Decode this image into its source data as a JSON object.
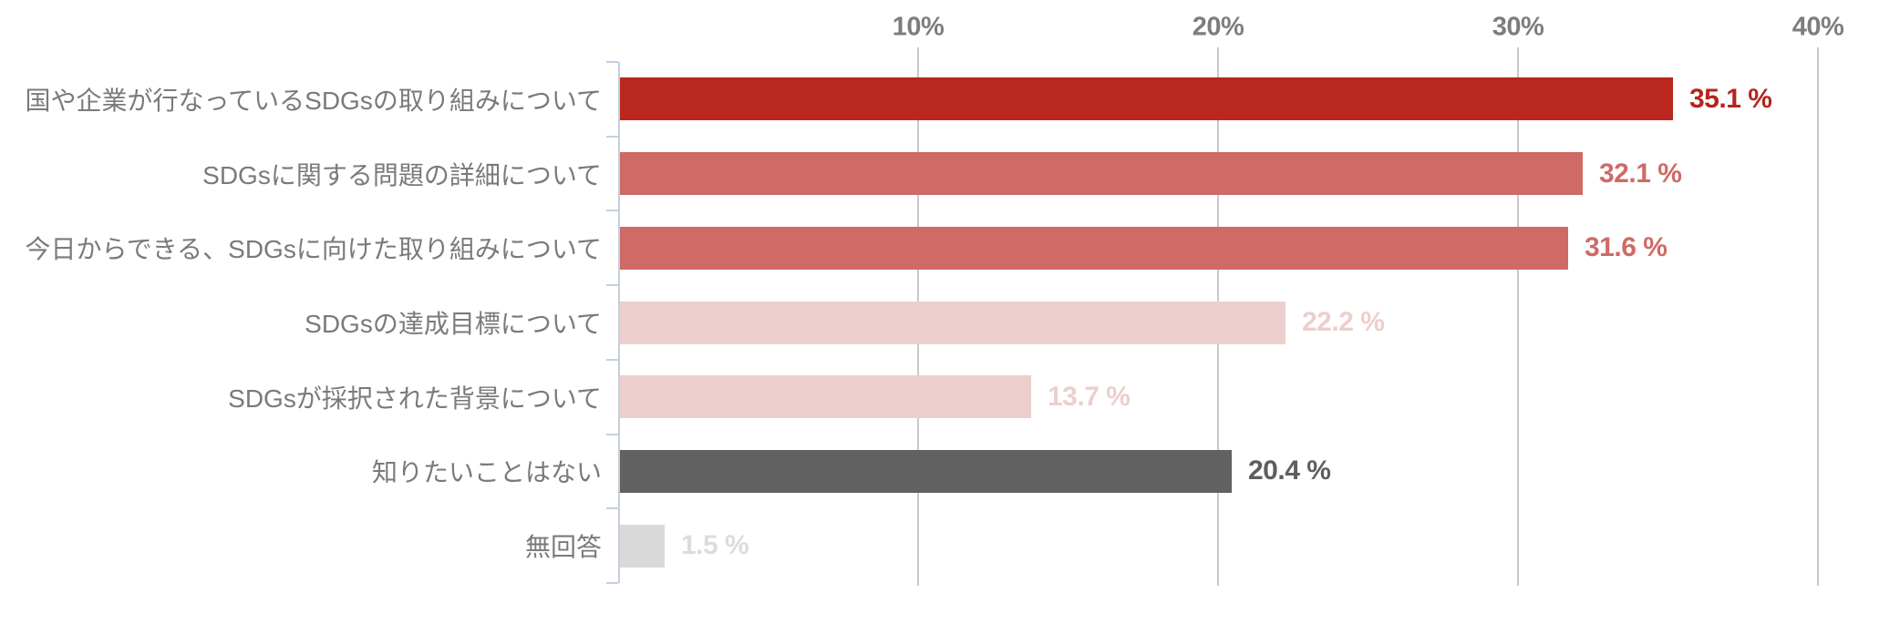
{
  "chart_data": {
    "type": "bar",
    "orientation": "horizontal",
    "title": "",
    "categories": [
      "国や企業が行なっているSDGsの取り組みについて",
      "SDGsに関する問題の詳細について",
      "今日からできる、SDGsに向けた取り組みについて",
      "SDGsの達成目標について",
      "SDGsが採択された背景について",
      "知りたいことはない",
      "無回答"
    ],
    "values": [
      35.1,
      32.1,
      31.6,
      22.2,
      13.7,
      20.4,
      1.5
    ],
    "value_labels": [
      "35.1 %",
      "32.1 %",
      "31.6 %",
      "22.2 %",
      "13.7 %",
      "20.4 %",
      "1.5 %"
    ],
    "bar_colors": [
      "#b9271e",
      "#cf6a66",
      "#cf6a66",
      "#eccfcd",
      "#eccfcd",
      "#616161",
      "#d9d9d9"
    ],
    "value_label_colors": [
      "#b5251c",
      "#cf6a66",
      "#cf6a66",
      "#eccfcd",
      "#eccfcd",
      "#5e5e5e",
      "#dcdcdc"
    ],
    "xlabel": "",
    "ylabel": "",
    "xlim": [
      0,
      40
    ],
    "x_ticks": [
      {
        "label": "10%",
        "value": 10
      },
      {
        "label": "20%",
        "value": 20
      },
      {
        "label": "30%",
        "value": 30
      },
      {
        "label": "40%",
        "value": 40
      }
    ],
    "grid": "vertical-gridlines-behind-bars",
    "legend": "none",
    "colors": {
      "category_label": "#7a7a7a",
      "axis_tick_label": "#7d7d7d",
      "gridline": "#c9c9c9",
      "y_axis_line": "#c5d0dd",
      "background": "#ffffff"
    }
  }
}
